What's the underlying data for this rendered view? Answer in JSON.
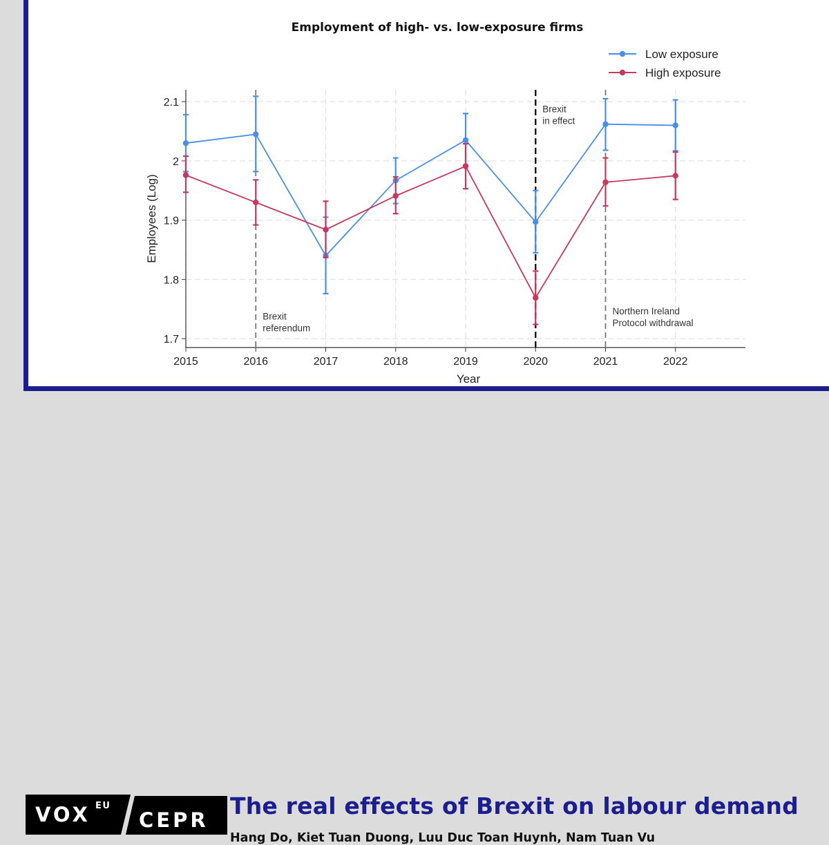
{
  "chart_data": {
    "type": "line",
    "title": "Employment of high- vs. low-exposure firms",
    "xlabel": "Year",
    "ylabel": "Employees (Log)",
    "x": [
      2015,
      2016,
      2017,
      2018,
      2019,
      2020,
      2021,
      2022
    ],
    "xlim": [
      2015,
      2023
    ],
    "ylim": [
      1.685,
      2.12
    ],
    "yticks": [
      "1.7",
      "1.8",
      "1.9",
      "2",
      "2.1"
    ],
    "xticks": [
      "2015",
      "2016",
      "2017",
      "2018",
      "2019",
      "2020",
      "2021",
      "2022"
    ],
    "legend_position": "top-right",
    "series": [
      {
        "name": "Low exposure",
        "color": "#4a8fe7",
        "values": [
          2.03,
          2.045,
          1.84,
          1.967,
          2.035,
          1.897,
          2.062,
          2.06
        ],
        "ci_low": [
          1.982,
          1.982,
          1.776,
          1.928,
          1.993,
          1.845,
          2.018,
          2.017
        ],
        "ci_high": [
          2.078,
          2.109,
          1.905,
          2.005,
          2.08,
          1.95,
          2.105,
          2.103
        ]
      },
      {
        "name": "High exposure",
        "color": "#c7385f",
        "values": [
          1.976,
          1.93,
          1.884,
          1.941,
          1.991,
          1.769,
          1.964,
          1.975
        ],
        "ci_low": [
          1.947,
          1.892,
          1.837,
          1.911,
          1.953,
          1.724,
          1.924,
          1.935
        ],
        "ci_high": [
          2.008,
          1.968,
          1.932,
          1.973,
          2.029,
          1.814,
          2.005,
          2.015
        ]
      }
    ],
    "annotations": [
      {
        "x": 2016,
        "style": "dashed-gray",
        "lines": [
          "Brexit",
          "referendum"
        ],
        "label_y": 1.732
      },
      {
        "x": 2020,
        "style": "dashed-black",
        "lines": [
          "Brexit",
          "in effect"
        ],
        "label_y": 2.082
      },
      {
        "x": 2021,
        "style": "dashed-gray",
        "lines": [
          "Northern Ireland",
          "Protocol withdrawal"
        ],
        "label_y": 1.741
      }
    ]
  },
  "branding": {
    "logo_vox": "VOX",
    "logo_eu": "EU",
    "logo_cepr": "CEPR"
  },
  "headline": "The real effects of Brexit on labour demand",
  "authors": "Hang Do, Kiet Tuan Duong, Luu Duc Toan Huynh, Nam Tuan Vu"
}
